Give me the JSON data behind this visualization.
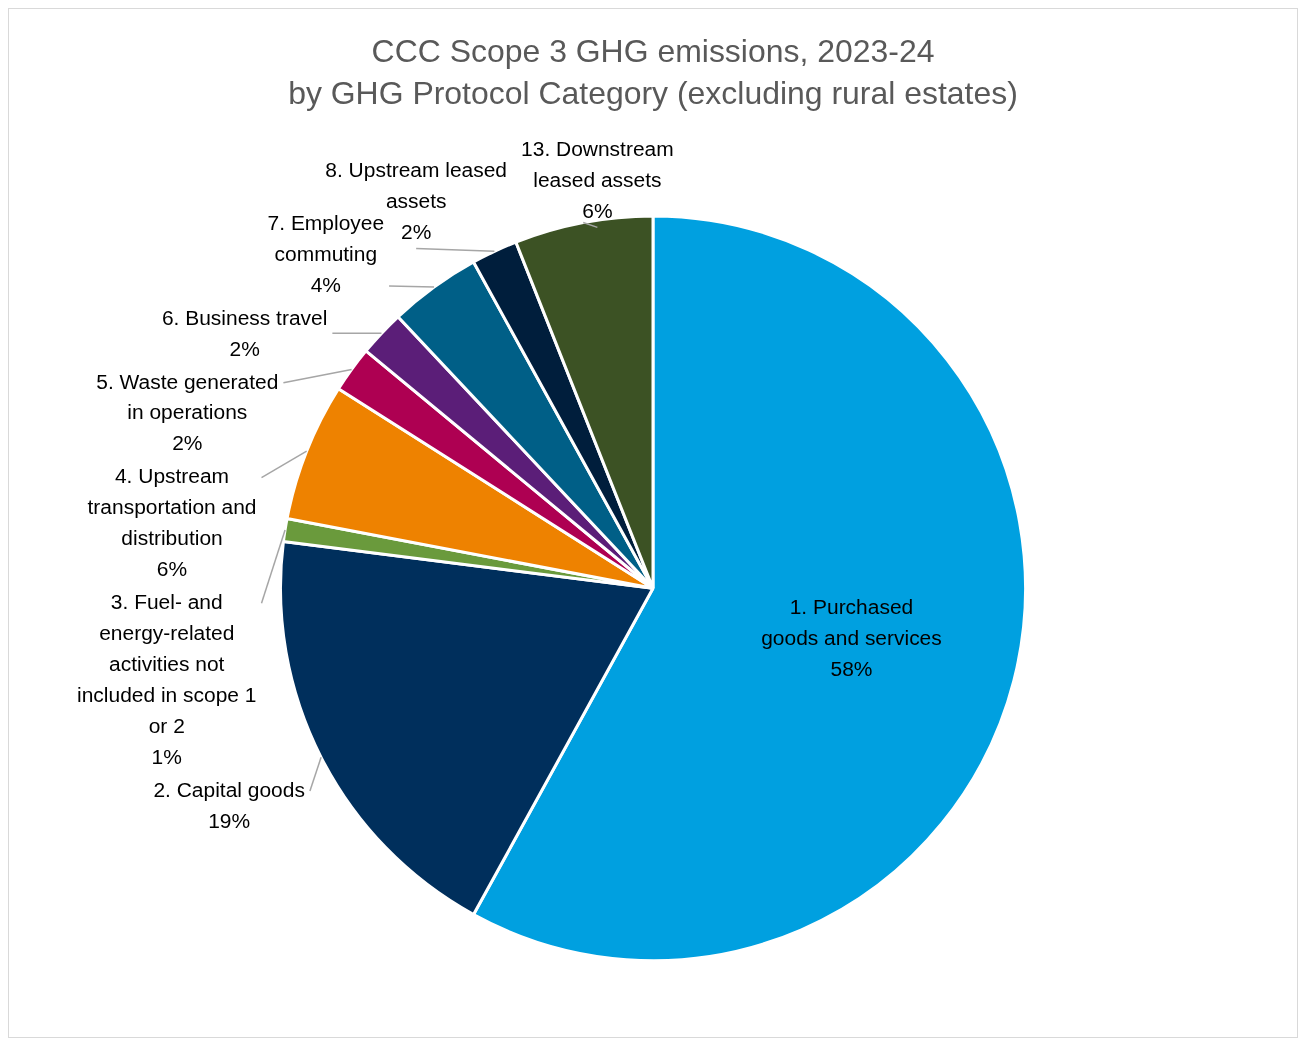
{
  "chart_data": {
    "type": "pie",
    "title": "CCC Scope 3 GHG emissions, 2023-24",
    "subtitle": "by GHG Protocol Category (excluding rural estates)",
    "categories": [
      "1. Purchased goods and services",
      "2. Capital goods",
      "3. Fuel- and energy-related activities not included in scope 1 or 2",
      "4. Upstream transportation and distribution",
      "5. Waste generated in operations",
      "6. Business travel",
      "7. Employee commuting",
      "8. Upstream leased assets",
      "13. Downstream leased assets"
    ],
    "values": [
      58,
      19,
      1,
      6,
      2,
      2,
      4,
      2,
      6
    ],
    "colors": [
      "#00a0e0",
      "#002f5c",
      "#6a9a3c",
      "#ee8200",
      "#ae0052",
      "#5b1e78",
      "#005f87",
      "#001e3c",
      "#3c5224"
    ],
    "value_labels": [
      "58%",
      "19%",
      "1%",
      "6%",
      "2%",
      "2%",
      "4%",
      "2%",
      "6%"
    ],
    "legend": false
  }
}
